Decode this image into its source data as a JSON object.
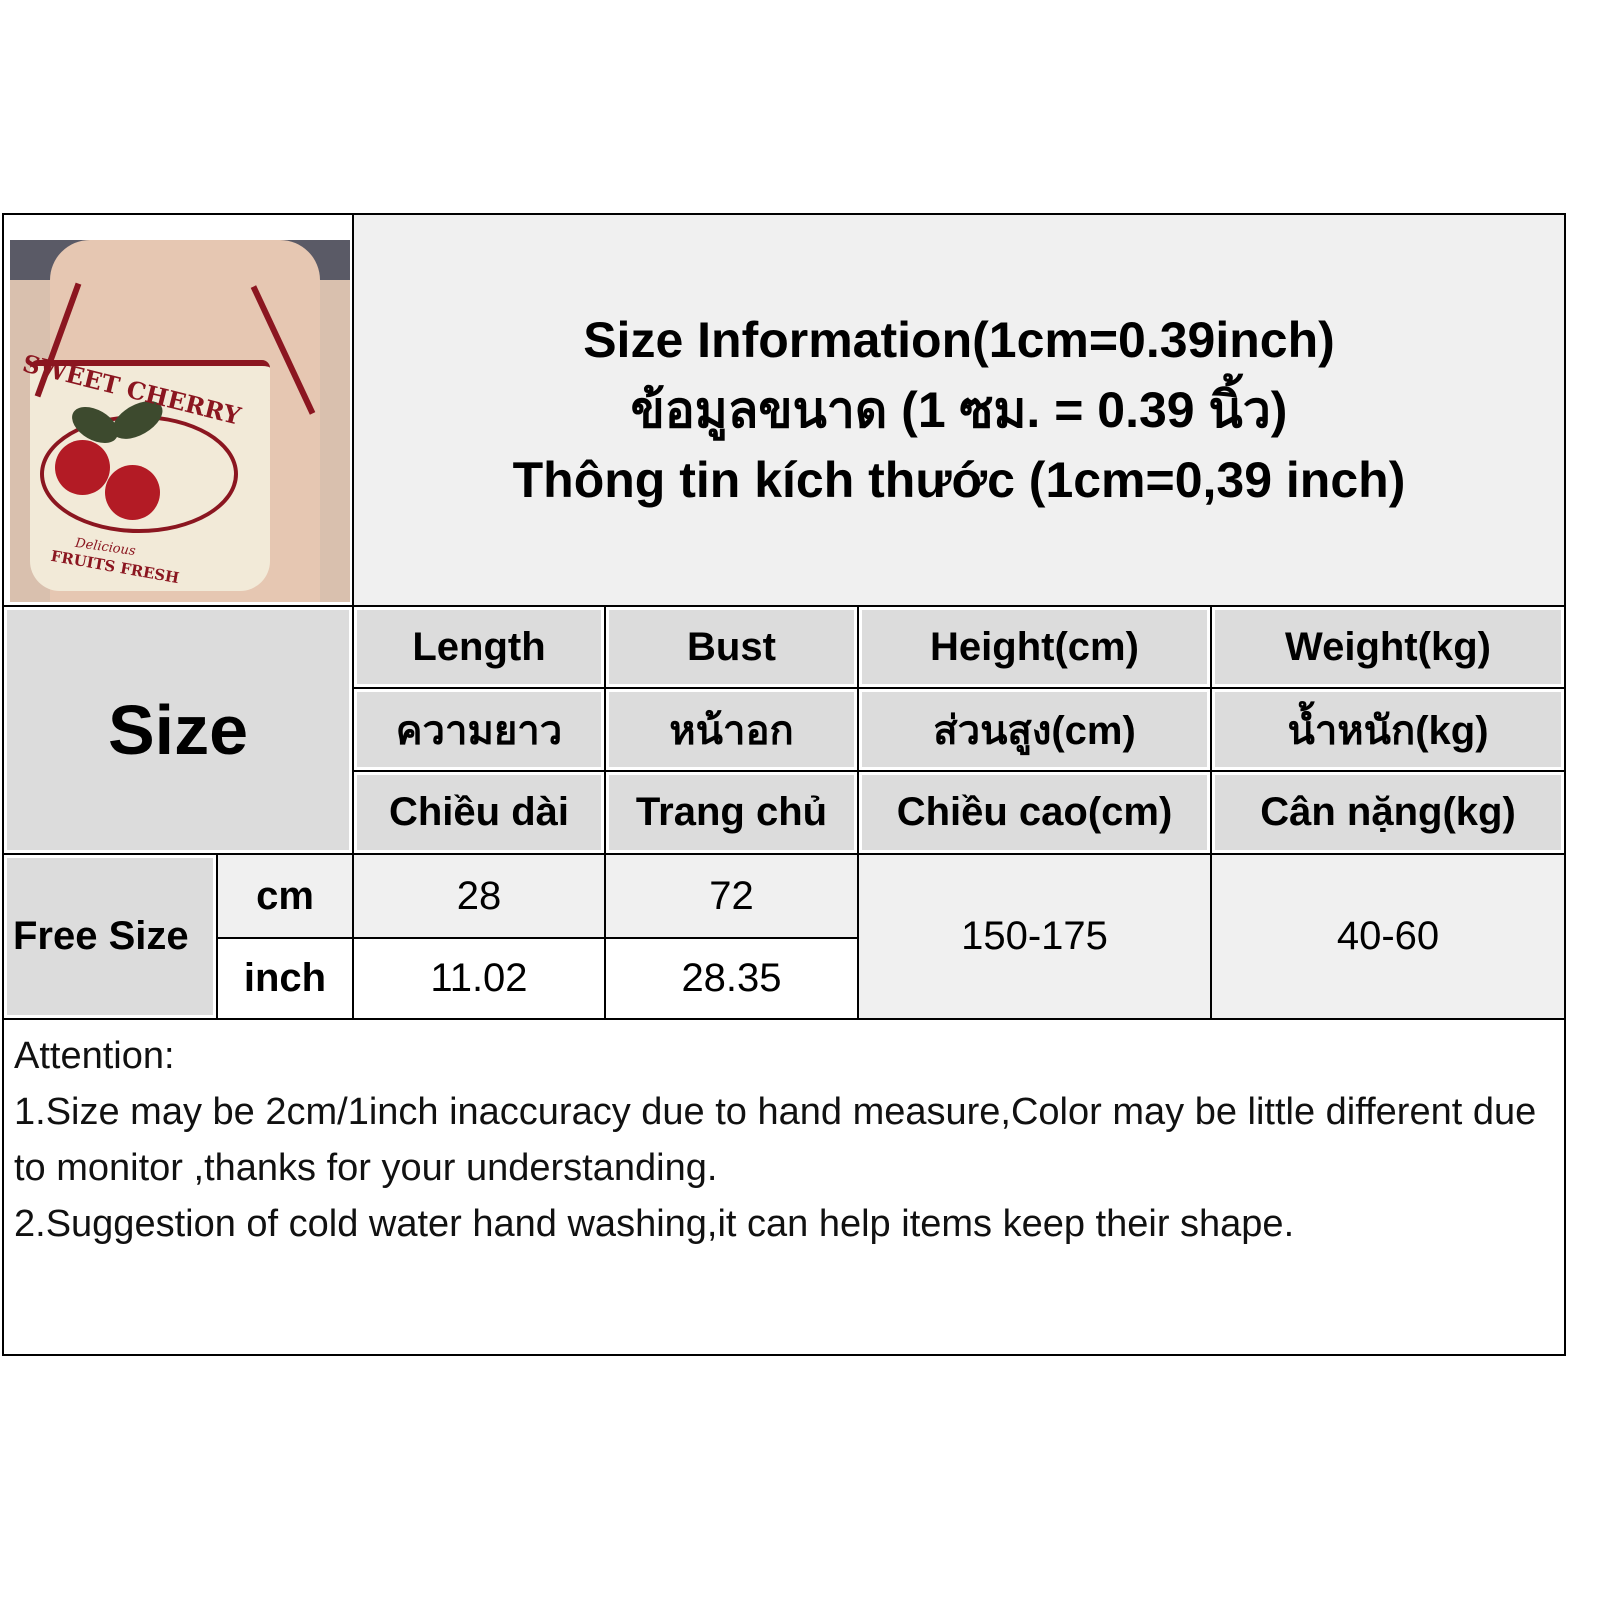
{
  "title": {
    "en": "Size Information(1cm=0.39inch)",
    "th": "ข้อมูลขนาด (1 ซม. = 0.39 นิ้ว)",
    "vi": "Thông tin kích thước (1cm=0,39 inch)"
  },
  "product_photo": {
    "printed_text": [
      "SWEET CHERRY",
      "Delicious",
      "FRUITS FRESH"
    ]
  },
  "table": {
    "size_label": "Size",
    "columns": [
      {
        "en": "Length",
        "th": "ความยาว",
        "vi": "Chiều dài"
      },
      {
        "en": "Bust",
        "th": "หน้าอก",
        "vi": "Trang chủ"
      },
      {
        "en": "Height(cm)",
        "th": "ส่วนสูง(cm)",
        "vi": "Chiều cao(cm)"
      },
      {
        "en": "Weight(kg)",
        "th": "น้ำหนัก(kg)",
        "vi": "Cân nặng(kg)"
      }
    ],
    "rows": [
      {
        "size": "Free Size",
        "cm": {
          "unit": "cm",
          "length": "28",
          "bust": "72"
        },
        "inch": {
          "unit": "inch",
          "length": "11.02",
          "bust": "28.35"
        },
        "height": "150-175",
        "weight": "40-60"
      }
    ]
  },
  "attention": {
    "heading": "Attention:",
    "notes": [
      "1.Size may be 2cm/1inch inaccuracy due to hand measure,Color may be little different due to monitor ,thanks for your understanding.",
      "2.Suggestion of cold water hand washing,it can help items keep their shape."
    ]
  }
}
